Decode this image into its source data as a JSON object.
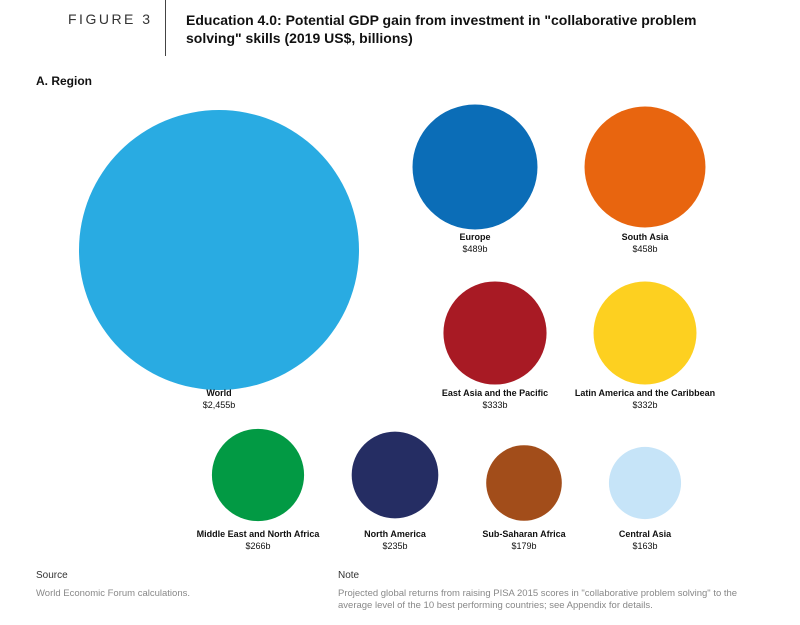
{
  "chart_data": {
    "type": "bubble",
    "figure_label": "FIGURE 3",
    "title": "Education 4.0: Potential GDP gain from investment in \"collaborative problem solving\" skills (2019 US$, billions)",
    "subtitle": "A. Region",
    "categories": [
      "World",
      "Europe",
      "South Asia",
      "East Asia and the Pacific",
      "Latin America and the Caribbean",
      "Middle East and North Africa",
      "North America",
      "Sub-Saharan Africa",
      "Central Asia"
    ],
    "values": [
      2455,
      489,
      458,
      333,
      332,
      266,
      235,
      179,
      163
    ],
    "value_labels": [
      "$2,455b",
      "$489b",
      "$458b",
      "$333b",
      "$332b",
      "$266b",
      "$235b",
      "$179b",
      "$163b"
    ],
    "colors": [
      "#29abe2",
      "#0b6db7",
      "#e8650f",
      "#a81a24",
      "#fdd020",
      "#029a44",
      "#252d63",
      "#a24d1a",
      "#c6e4f8"
    ]
  },
  "footer": {
    "source_heading": "Source",
    "source": "World Economic Forum calculations.",
    "note_heading": "Note",
    "note": "Projected global returns from raising PISA 2015 scores in \"collaborative problem solving\" to the average level of the 10 best performing countries; see Appendix for details."
  }
}
